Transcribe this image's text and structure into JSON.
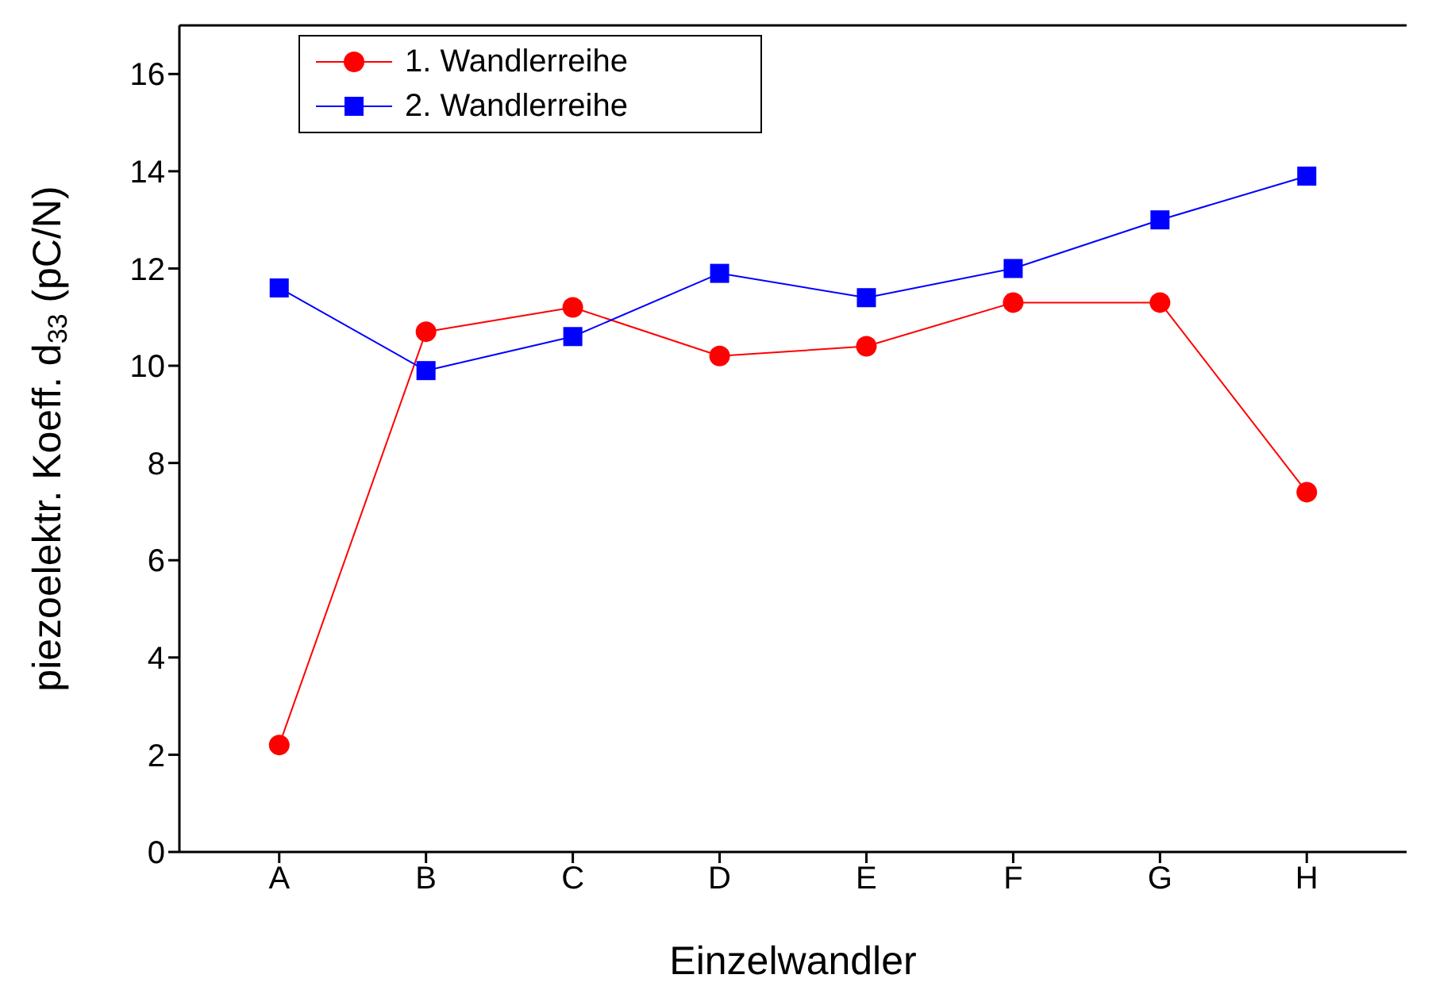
{
  "chart_data": {
    "type": "line",
    "xlabel": "Einzelwandler",
    "ylabel": "piezoelektr. Koeff. d$_{33}$ (pC/N)",
    "categories": [
      "A",
      "B",
      "C",
      "D",
      "E",
      "F",
      "G",
      "H"
    ],
    "series": [
      {
        "name": "1. Wandlerreihe",
        "color": "#ff0000",
        "marker": "circle",
        "values": [
          2.2,
          10.7,
          11.2,
          10.2,
          10.4,
          11.3,
          11.3,
          7.4
        ]
      },
      {
        "name": "2. Wandlerreihe",
        "color": "#0000ff",
        "marker": "square",
        "values": [
          11.6,
          9.9,
          10.6,
          11.9,
          11.4,
          12.0,
          13.0,
          13.9
        ]
      }
    ],
    "ylim": [
      0,
      17
    ],
    "yticks": [
      0,
      2,
      4,
      6,
      8,
      10,
      12,
      14,
      16
    ],
    "legend": "top left",
    "line_style": "solid"
  }
}
